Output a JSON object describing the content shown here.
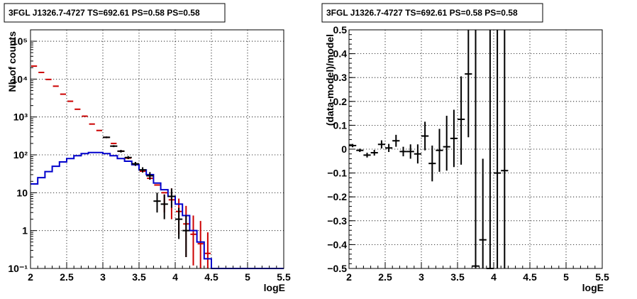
{
  "panels": [
    {
      "title": "3FGL J1326.7-4727 TS=692.61 PS=0.58 PS=0.58",
      "xlabel": "logE",
      "ylabel": "Nb of counts",
      "x_ticks": [
        "2",
        "2.5",
        "3",
        "3.5",
        "4",
        "4.5",
        "5",
        "5.5"
      ],
      "y_ticks": [
        "10⁻¹",
        "1",
        "10",
        "10²",
        "10³",
        "10⁴",
        "10⁵"
      ]
    },
    {
      "title": "3FGL J1326.7-4727 TS=692.61 PS=0.58 PS=0.58",
      "xlabel": "logE",
      "ylabel": "(data-model)/model",
      "x_ticks": [
        "2",
        "2.5",
        "3",
        "3.5",
        "4",
        "4.5",
        "5",
        "5.5"
      ],
      "y_ticks": [
        "−0.5",
        "−0.4",
        "−0.3",
        "−0.2",
        "−0.1",
        "0",
        "0.1",
        "0.2",
        "0.3",
        "0.4",
        "0.5"
      ]
    }
  ],
  "colors": {
    "model": "#cc0000",
    "fit": "#0000cc",
    "data": "#000000"
  },
  "chart_data": [
    {
      "type": "line",
      "title": "3FGL J1326.7-4727 TS=692.61 PS=0.58 PS=0.58",
      "xlabel": "logE",
      "ylabel": "Nb of counts",
      "xlim": [
        2,
        5.5
      ],
      "ylim": [
        0.1,
        200000
      ],
      "yscale": "log",
      "grid": true,
      "bin_edges": [
        2.0,
        2.1,
        2.2,
        2.3,
        2.4,
        2.5,
        2.6,
        2.7,
        2.8,
        2.9,
        3.0,
        3.1,
        3.2,
        3.3,
        3.4,
        3.5,
        3.6,
        3.7,
        3.8,
        3.9,
        4.0,
        4.1,
        4.2,
        4.3,
        4.4,
        4.5,
        4.6,
        4.7,
        4.8,
        4.9,
        5.0,
        5.1,
        5.2,
        5.3,
        5.4,
        5.5
      ],
      "series": [
        {
          "values": [
            22000,
            15000,
            9800,
            6500,
            4000,
            2600,
            1600,
            1050,
            650,
            440,
            290,
            200,
            125,
            82,
            55,
            37,
            24,
            16,
            10,
            6.5,
            3.2,
            1.5,
            0.8,
            0.45,
            0.25,
            0.1,
            0.1,
            0.1,
            0.1,
            0.1,
            0.1,
            0.1,
            0.1,
            0.1,
            0.1
          ]
        },
        {
          "values": [
            17,
            25,
            36,
            50,
            65,
            80,
            95,
            108,
            115,
            115,
            108,
            95,
            80,
            68,
            55,
            40,
            30,
            18,
            12,
            8,
            5,
            2.5,
            1,
            0.5,
            0.18,
            0.1,
            0.1,
            0.1,
            0.1,
            0.1,
            0.1,
            0.1,
            0.1,
            0.1,
            0.1
          ]
        },
        {
          "x": [
            3.05,
            3.15,
            3.25,
            3.35,
            3.45,
            3.55,
            3.65,
            3.75,
            3.85,
            3.95,
            4.05,
            4.15
          ],
          "values": [
            290,
            170,
            125,
            85,
            58,
            40,
            28,
            6,
            5,
            8,
            2,
            1
          ],
          "err_low": [
            275,
            160,
            115,
            77,
            51,
            34,
            22,
            3,
            2,
            4,
            0.6,
            0.2
          ],
          "err_high": [
            305,
            180,
            135,
            93,
            65,
            47,
            35,
            10,
            9,
            13,
            4,
            2.5
          ]
        }
      ]
    },
    {
      "type": "scatter",
      "title": "3FGL J1326.7-4727 TS=692.61 PS=0.58 PS=0.58",
      "xlabel": "logE",
      "ylabel": "(data-model)/model",
      "xlim": [
        2,
        5.5
      ],
      "ylim": [
        -0.5,
        0.5
      ],
      "grid": true,
      "series": [
        {
          "x": [
            2.05,
            2.15,
            2.25,
            2.35,
            2.45,
            2.55,
            2.65,
            2.75,
            2.85,
            2.95,
            3.05,
            3.15,
            3.25,
            3.35,
            3.45,
            3.55,
            3.65,
            3.75,
            3.85,
            3.95,
            4.05,
            4.15
          ],
          "values": [
            0.015,
            -0.005,
            -0.025,
            -0.015,
            0.02,
            0.005,
            0.035,
            -0.01,
            -0.01,
            -0.02,
            0.055,
            -0.06,
            -0.005,
            0.01,
            0.045,
            0.125,
            0.315,
            -0.49,
            -0.38,
            -0.5,
            -0.1,
            -0.09
          ],
          "err_low": [
            0.008,
            -0.012,
            -0.035,
            -0.027,
            0.003,
            -0.012,
            0.01,
            -0.03,
            -0.04,
            -0.06,
            -0.005,
            -0.135,
            -0.095,
            -0.09,
            -0.075,
            -0.065,
            0.05,
            -0.5,
            -0.5,
            -0.5,
            -0.5,
            -0.5
          ],
          "err_high": [
            0.022,
            0.002,
            -0.015,
            -0.003,
            0.037,
            0.022,
            0.06,
            0.01,
            0.02,
            0.02,
            0.115,
            0.015,
            0.085,
            0.14,
            0.165,
            0.305,
            0.5,
            0.5,
            -0.04,
            0.5,
            0.5,
            0.5
          ]
        }
      ]
    }
  ]
}
